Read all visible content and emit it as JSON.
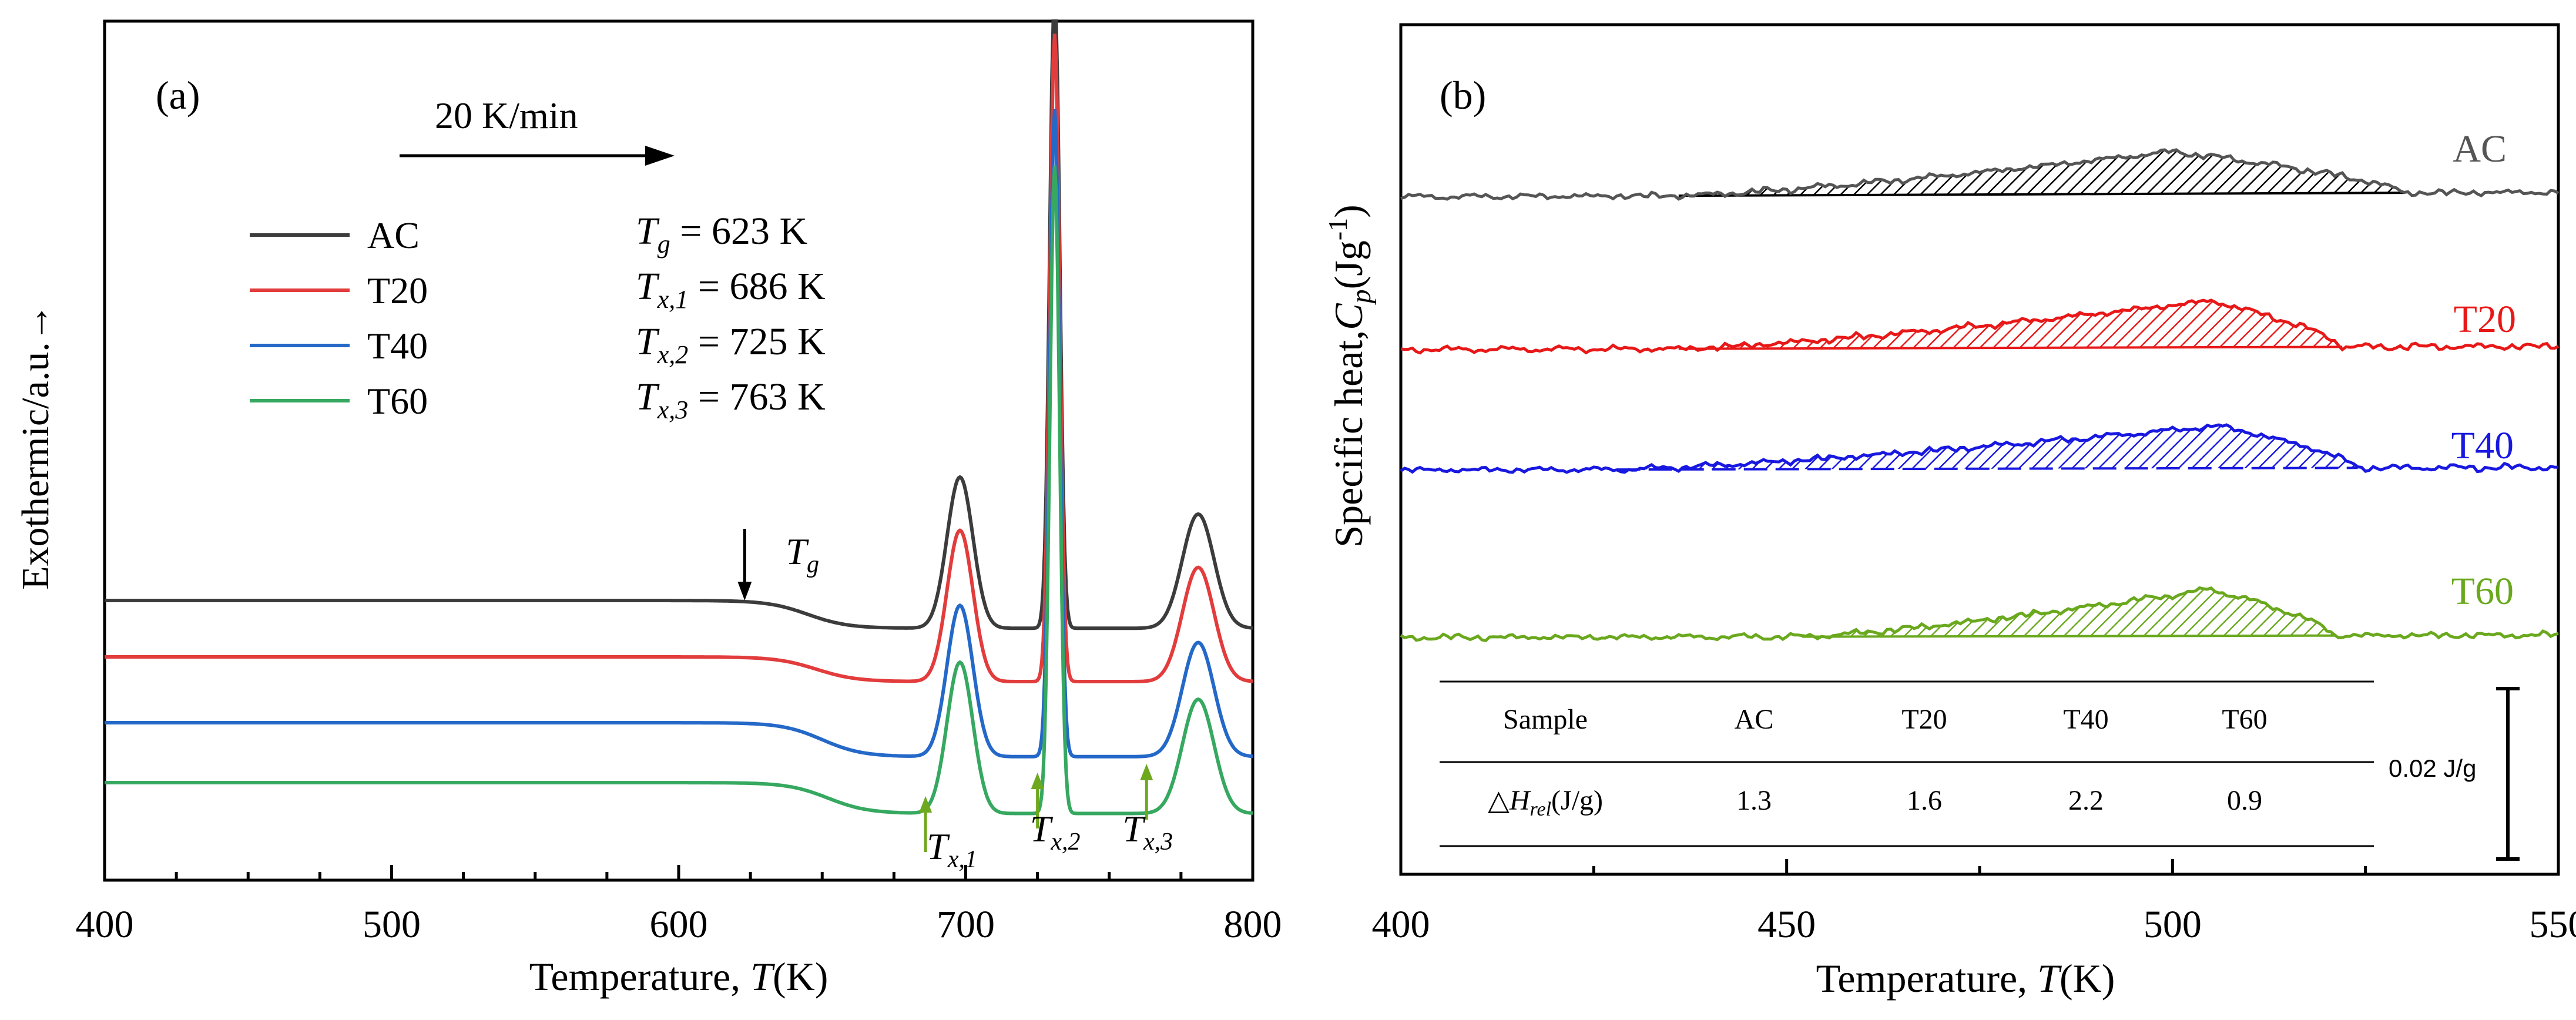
{
  "chart_data": [
    {
      "panel_label": "(a)",
      "type": "line",
      "xlabel_main": "Temperature, ",
      "xlabel_symbol": "T",
      "xlabel_unit": "(K)",
      "ylabel": "Exothermic/a.u.→",
      "xlim": [
        400,
        800
      ],
      "xticks": [
        "400",
        "500",
        "600",
        "700",
        "800"
      ],
      "rate_label": "20 K/min",
      "transition_values": [
        {
          "symbol": "T",
          "sub": "g",
          "text": " = 623 K"
        },
        {
          "symbol": "T",
          "sub": "x,1",
          "text": " = 686 K"
        },
        {
          "symbol": "T",
          "sub": "x,2",
          "text": " = 725 K"
        },
        {
          "symbol": "T",
          "sub": "x,3",
          "text": " = 763 K"
        }
      ],
      "annotations": [
        {
          "symbol": "T",
          "sub": "g",
          "x": 623
        },
        {
          "symbol": "T",
          "sub": "x,1",
          "x": 686
        },
        {
          "symbol": "T",
          "sub": "x,2",
          "x": 725
        },
        {
          "symbol": "T",
          "sub": "x,3",
          "x": 763
        }
      ],
      "series": [
        {
          "name": "AC",
          "color": "#3c3c3c",
          "baseline": 4.2,
          "drop": 0.45,
          "glass_center": 645
        },
        {
          "name": "T20",
          "color": "#e23c3c",
          "baseline": 3.25,
          "drop": 0.4,
          "glass_center": 648
        },
        {
          "name": "T40",
          "color": "#2468c8",
          "baseline": 2.1,
          "drop": 0.55,
          "glass_center": 650
        },
        {
          "name": "T60",
          "color": "#36a860",
          "baseline": 1.05,
          "drop": 0.5,
          "glass_center": 652
        }
      ],
      "peaks": [
        {
          "x": 698,
          "height": 2.45,
          "width": 4.5
        },
        {
          "x": 731,
          "height": 10.5,
          "width": 1.7
        },
        {
          "x": 781,
          "height": 1.85,
          "width": 5.5
        }
      ]
    },
    {
      "panel_label": "(b)",
      "type": "area",
      "xlabel_main": "Temperature, ",
      "xlabel_symbol": "T",
      "xlabel_unit": "(K)",
      "ylabel_main": "Specific heat,",
      "ylabel_symbol": "C",
      "ylabel_sub": "p",
      "ylabel_unit": "(Jg",
      "ylabel_sup": "-1",
      "ylabel_close": ")",
      "xlim": [
        400,
        550
      ],
      "xticks": [
        "400",
        "450",
        "500",
        "550"
      ],
      "scale_bar_label": "0.02 J/g",
      "series": [
        {
          "name": "AC",
          "color": "#555555",
          "fill": "#000000",
          "start": 436,
          "end": 530,
          "peak": 500,
          "amp": 1.0
        },
        {
          "name": "T20",
          "color": "#e81818",
          "fill": "#e81818",
          "start": 436,
          "end": 522,
          "peak": 505,
          "amp": 1.1
        },
        {
          "name": "T40",
          "color": "#1818e0",
          "fill": "#1818e0",
          "start": 428,
          "end": 524,
          "peak": 506,
          "amp": 1.0
        },
        {
          "name": "T60",
          "color": "#6aa81e",
          "fill": "#6aa81e",
          "start": 452,
          "end": 521,
          "peak": 505,
          "amp": 1.1
        }
      ],
      "table": {
        "columns": [
          "Sample",
          "AC",
          "T20",
          "T40",
          "T60"
        ],
        "row_label_symbol": "△H",
        "row_label_sub": "rel",
        "row_label_unit": "(J/g)",
        "values": [
          "1.3",
          "1.6",
          "2.2",
          "0.9"
        ]
      }
    }
  ]
}
